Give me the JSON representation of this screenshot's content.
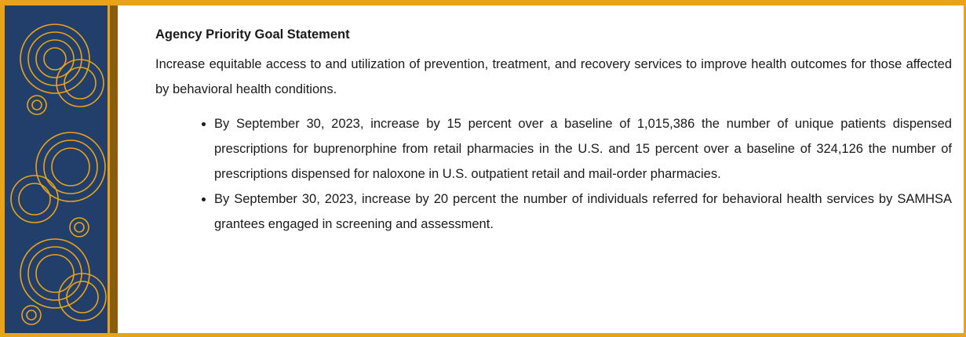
{
  "box": {
    "title": "Agency Priority Goal Statement",
    "statement": "Increase equitable access to and utilization of prevention, treatment, and recovery services to improve health outcomes for those affected by behavioral health conditions.",
    "bullets": [
      "By September 30, 2023, increase by 15 percent over a baseline of 1,015,386 the number of unique patients dispensed prescriptions for buprenorphine from retail pharmacies in the U.S. and 15 percent over a baseline of 324,126 the number of prescriptions dispensed for naloxone in U.S. outpatient retail and mail-order pharmacies.",
      "By September 30, 2023, increase by 20 percent the number of individuals referred for behavioral health services by SAMHSA grantees engaged in screening and assessment."
    ]
  }
}
